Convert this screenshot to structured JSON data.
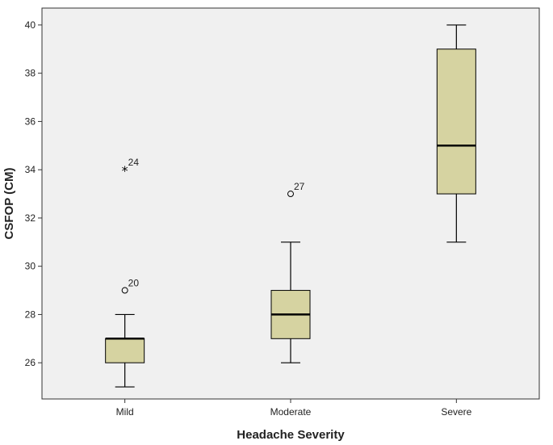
{
  "chart_data": {
    "type": "boxplot",
    "title": "",
    "xlabel": "Headache Severity",
    "ylabel": "CSFOP (CM)",
    "ylim": [
      24.5,
      40.7
    ],
    "yticks": [
      26,
      28,
      30,
      32,
      34,
      36,
      38,
      40
    ],
    "grid": false,
    "legend": "none",
    "colors": {
      "box_fill": "#d6d3a1",
      "plot_background": "#f0f0f0",
      "frame": "#333333"
    },
    "categories": [
      "Mild",
      "Moderate",
      "Severe"
    ],
    "boxes": [
      {
        "category": "Mild",
        "whisker_low": 25,
        "q1": 26,
        "median": 27,
        "q3": 27,
        "whisker_high": 28,
        "outliers": [
          {
            "value": 29,
            "label": "20",
            "marker": "circle"
          },
          {
            "value": 34,
            "label": "24",
            "marker": "star"
          }
        ]
      },
      {
        "category": "Moderate",
        "whisker_low": 26,
        "q1": 27,
        "median": 28,
        "q3": 29,
        "whisker_high": 31,
        "outliers": [
          {
            "value": 33,
            "label": "27",
            "marker": "circle"
          }
        ]
      },
      {
        "category": "Severe",
        "whisker_low": 31,
        "q1": 33,
        "median": 35,
        "q3": 39,
        "whisker_high": 40,
        "outliers": []
      }
    ]
  }
}
